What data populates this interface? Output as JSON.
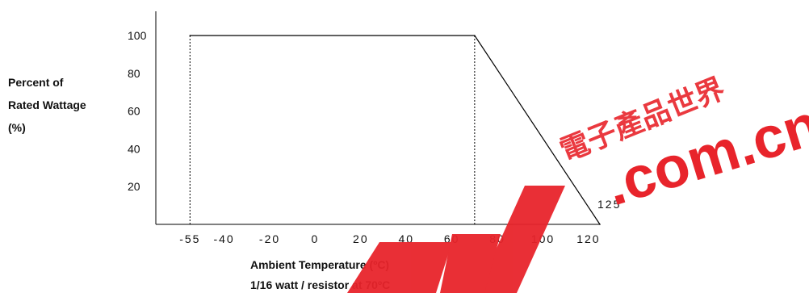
{
  "chart_data": {
    "type": "line",
    "title": "",
    "ylabel_lines": [
      "Percent of",
      "Rated Wattage",
      "(%)"
    ],
    "xlabel": "Ambient Temperature (ºC)",
    "subtitle": "1/16 watt / resistor at 70ºC",
    "x": [
      -55,
      70,
      125
    ],
    "y": [
      100,
      100,
      0
    ],
    "xlim": [
      -70,
      125
    ],
    "ylim": [
      0,
      110
    ],
    "xticks": [
      "-55",
      "-40",
      "-20",
      "0",
      "20",
      "40",
      "60",
      "80",
      "100",
      "120"
    ],
    "xtick_values": [
      -55,
      -40,
      -20,
      0,
      20,
      40,
      60,
      80,
      100,
      120
    ],
    "yticks": [
      "100",
      "80",
      "60",
      "40",
      "20"
    ],
    "ytick_values": [
      100,
      80,
      60,
      40,
      20
    ],
    "annotations": [
      "125"
    ],
    "grid": false
  },
  "watermark": {
    "text": "EDW .com.cn",
    "cjk": "電子產品世界",
    "color": "#e8242b"
  }
}
